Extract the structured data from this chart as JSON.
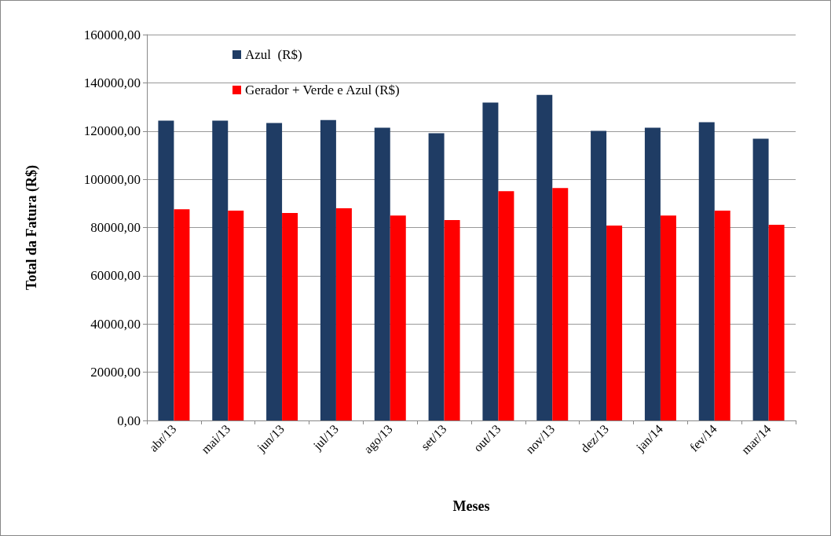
{
  "chart_data": {
    "type": "bar",
    "xlabel": "Meses",
    "ylabel": "Total da Fatura (R$)",
    "categories": [
      "abr/13",
      "mai/13",
      "jun/13",
      "jul/13",
      "ago/13",
      "set/13",
      "out/13",
      "nov/13",
      "dez/13",
      "jan/14",
      "fev/14",
      "mar/14"
    ],
    "series": [
      {
        "name": "Azul  (R$)",
        "color": "#1f3c64",
        "values": [
          124300,
          124300,
          123300,
          124600,
          121400,
          119100,
          131800,
          135000,
          120100,
          121400,
          123700,
          116800
        ]
      },
      {
        "name": "Gerador + Verde e Azul (R$)",
        "color": "#ff0000",
        "values": [
          87600,
          87000,
          86000,
          88000,
          85000,
          83100,
          95100,
          96400,
          80800,
          85000,
          87000,
          81100
        ]
      }
    ],
    "ylim": [
      0,
      160000
    ],
    "yticks": [
      {
        "value": 0,
        "label": "0,00"
      },
      {
        "value": 20000,
        "label": "20000,00"
      },
      {
        "value": 40000,
        "label": "40000,00"
      },
      {
        "value": 60000,
        "label": "60000,00"
      },
      {
        "value": 80000,
        "label": "80000,00"
      },
      {
        "value": 100000,
        "label": "100000,00"
      },
      {
        "value": 120000,
        "label": "120000,00"
      },
      {
        "value": 140000,
        "label": "140000,00"
      },
      {
        "value": 160000,
        "label": "160000,00"
      }
    ],
    "grid": "y",
    "legend": "top left"
  }
}
